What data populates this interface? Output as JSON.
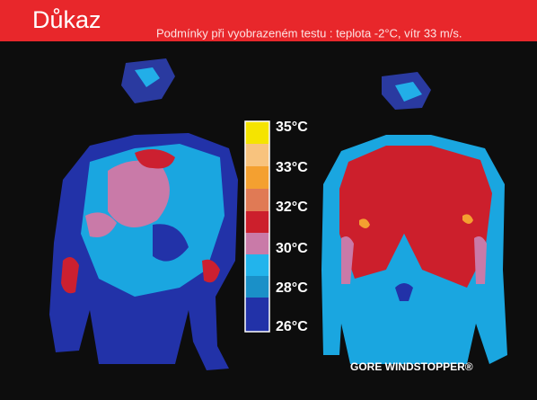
{
  "header": {
    "title": "Důkaz",
    "subtitle": "Podmínky při vyobrazeném testu : teplota -2°C, vítr 33 m/s."
  },
  "legend": {
    "labels": [
      "35°C",
      "33°C",
      "32°C",
      "30°C",
      "28°C",
      "26°C"
    ]
  },
  "footer": {
    "brand": "GORE WINDSTOPPER®"
  }
}
